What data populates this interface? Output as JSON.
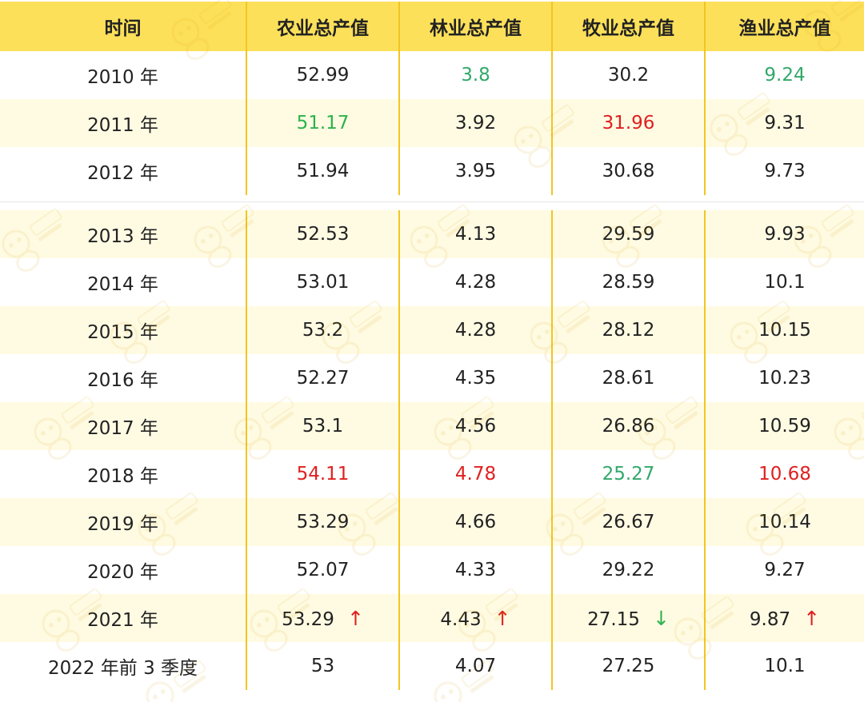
{
  "colors": {
    "header_bg": "#fde05a",
    "alt_row_bg": "#fffbe3",
    "divider": "#f2c521",
    "text": "#222222",
    "up": "#e02020",
    "down_green": "#2bb34a",
    "low_green": "#31a96a"
  },
  "header": [
    "时间",
    "农业总产值",
    "林业总产值",
    "牧业总产值",
    "渔业总产值"
  ],
  "watermark_icon": "bee-logo-icon",
  "rows_top": [
    {
      "cells": [
        {
          "v": "2010 年"
        },
        {
          "v": "52.99"
        },
        {
          "v": "3.8",
          "c": "#31a96a"
        },
        {
          "v": "30.2"
        },
        {
          "v": "9.24",
          "c": "#31a96a"
        }
      ]
    },
    {
      "cells": [
        {
          "v": "2011 年"
        },
        {
          "v": "51.17",
          "c": "#2bb34a"
        },
        {
          "v": "3.92"
        },
        {
          "v": "31.96",
          "c": "#e02020"
        },
        {
          "v": "9.31"
        }
      ]
    },
    {
      "cells": [
        {
          "v": "2012 年"
        },
        {
          "v": "51.94"
        },
        {
          "v": "3.95"
        },
        {
          "v": "30.68"
        },
        {
          "v": "9.73"
        }
      ]
    }
  ],
  "rows_bottom": [
    {
      "cells": [
        {
          "v": "2013 年"
        },
        {
          "v": "52.53"
        },
        {
          "v": "4.13"
        },
        {
          "v": "29.59"
        },
        {
          "v": "9.93"
        }
      ]
    },
    {
      "cells": [
        {
          "v": "2014 年"
        },
        {
          "v": "53.01"
        },
        {
          "v": "4.28"
        },
        {
          "v": "28.59"
        },
        {
          "v": "10.1"
        }
      ]
    },
    {
      "cells": [
        {
          "v": "2015 年"
        },
        {
          "v": "53.2"
        },
        {
          "v": "4.28"
        },
        {
          "v": "28.12"
        },
        {
          "v": "10.15"
        }
      ]
    },
    {
      "cells": [
        {
          "v": "2016 年"
        },
        {
          "v": "52.27"
        },
        {
          "v": "4.35"
        },
        {
          "v": "28.61"
        },
        {
          "v": "10.23"
        }
      ]
    },
    {
      "cells": [
        {
          "v": "2017 年"
        },
        {
          "v": "53.1"
        },
        {
          "v": "4.56"
        },
        {
          "v": "26.86"
        },
        {
          "v": "10.59"
        }
      ]
    },
    {
      "cells": [
        {
          "v": "2018 年"
        },
        {
          "v": "54.11",
          "c": "#e02020"
        },
        {
          "v": "4.78",
          "c": "#e02020"
        },
        {
          "v": "25.27",
          "c": "#31a96a"
        },
        {
          "v": "10.68",
          "c": "#e02020"
        }
      ]
    },
    {
      "cells": [
        {
          "v": "2019 年"
        },
        {
          "v": "53.29"
        },
        {
          "v": "4.66"
        },
        {
          "v": "26.67"
        },
        {
          "v": "10.14"
        }
      ]
    },
    {
      "cells": [
        {
          "v": "2020 年"
        },
        {
          "v": "52.07"
        },
        {
          "v": "4.33"
        },
        {
          "v": "29.22"
        },
        {
          "v": "9.27"
        }
      ]
    },
    {
      "cells": [
        {
          "v": "2021 年"
        },
        {
          "v": "53.29",
          "a": "↑",
          "ac": "#e02020"
        },
        {
          "v": "4.43",
          "a": "↑",
          "ac": "#e02020"
        },
        {
          "v": "27.15",
          "a": "↓",
          "ac": "#2bb34a"
        },
        {
          "v": "9.87",
          "a": "↑",
          "ac": "#e02020"
        }
      ]
    },
    {
      "cells": [
        {
          "v": "2022 年前 3 季度"
        },
        {
          "v": "53"
        },
        {
          "v": "4.07"
        },
        {
          "v": "27.25"
        },
        {
          "v": "10.1"
        }
      ]
    }
  ]
}
